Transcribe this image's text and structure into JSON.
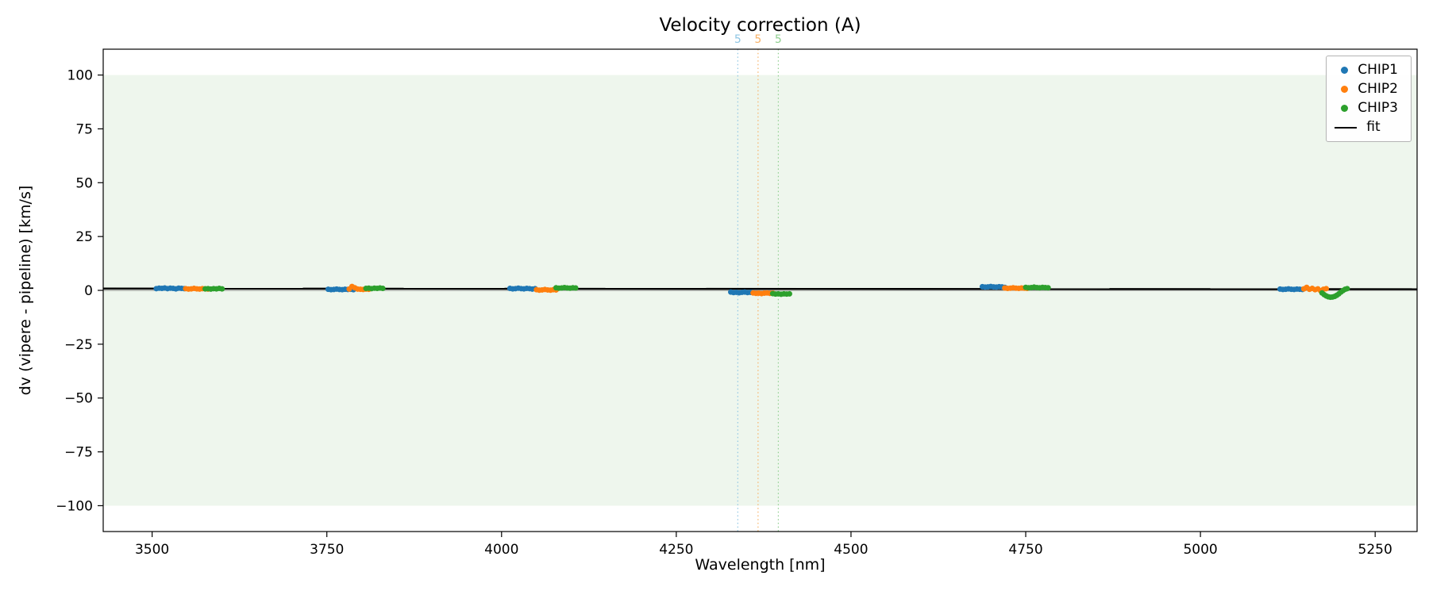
{
  "chart_data": {
    "type": "scatter",
    "title": "Velocity correction (A)",
    "xlabel": "Wavelength [nm]",
    "ylabel": "dv (vipere - pipeline) [km/s]",
    "xlim": [
      3430,
      5310
    ],
    "ylim": [
      -112,
      112
    ],
    "xticks": [
      3500,
      3750,
      4000,
      4250,
      4500,
      4750,
      5000,
      5250
    ],
    "yticks": [
      100,
      75,
      50,
      25,
      0,
      -25,
      -50,
      -75,
      -100
    ],
    "grid": false,
    "legend_position": "upper right",
    "band": {
      "ymin": -100,
      "ymax": 100,
      "color": "#eef6ed"
    },
    "zero_line": {
      "y": 0,
      "color": "#808080"
    },
    "vlines": [
      {
        "x": 4338,
        "label": "5",
        "color": "#8fc6e4"
      },
      {
        "x": 4367,
        "label": "5",
        "color": "#f8b267"
      },
      {
        "x": 4396,
        "label": "5",
        "color": "#90cf90"
      }
    ],
    "fit": {
      "name": "fit",
      "color": "#000000",
      "points": [
        [
          3430,
          0.85
        ],
        [
          5310,
          0.55
        ]
      ]
    },
    "series": [
      {
        "name": "CHIP1",
        "color": "#1f77b4",
        "points": [
          [
            3506,
            0.8
          ],
          [
            3510,
            1.0
          ],
          [
            3514,
            0.9
          ],
          [
            3518,
            1.1
          ],
          [
            3522,
            0.8
          ],
          [
            3526,
            1.0
          ],
          [
            3530,
            0.9
          ],
          [
            3534,
            0.7
          ],
          [
            3538,
            1.0
          ],
          [
            3542,
            0.9
          ],
          [
            3546,
            0.8
          ],
          [
            3752,
            0.5
          ],
          [
            3756,
            0.3
          ],
          [
            3760,
            0.4
          ],
          [
            3764,
            0.6
          ],
          [
            3768,
            0.4
          ],
          [
            3772,
            0.3
          ],
          [
            3776,
            0.5
          ],
          [
            3780,
            0.4
          ],
          [
            3784,
            0.5
          ],
          [
            3788,
            0.3
          ],
          [
            4012,
            0.9
          ],
          [
            4016,
            0.7
          ],
          [
            4020,
            0.8
          ],
          [
            4024,
            1.0
          ],
          [
            4028,
            0.8
          ],
          [
            4032,
            0.7
          ],
          [
            4036,
            0.9
          ],
          [
            4040,
            0.8
          ],
          [
            4044,
            0.6
          ],
          [
            4048,
            0.8
          ],
          [
            4328,
            -0.8
          ],
          [
            4332,
            -1.0
          ],
          [
            4336,
            -0.9
          ],
          [
            4340,
            -1.1
          ],
          [
            4344,
            -0.9
          ],
          [
            4348,
            -0.8
          ],
          [
            4352,
            -1.0
          ],
          [
            4356,
            -0.9
          ],
          [
            4360,
            -1.1
          ],
          [
            4688,
            1.7
          ],
          [
            4692,
            1.5
          ],
          [
            4696,
            1.6
          ],
          [
            4700,
            1.8
          ],
          [
            4704,
            1.6
          ],
          [
            4708,
            1.5
          ],
          [
            4712,
            1.7
          ],
          [
            4716,
            1.6
          ],
          [
            4720,
            1.4
          ],
          [
            5114,
            0.6
          ],
          [
            5118,
            0.4
          ],
          [
            5122,
            0.5
          ],
          [
            5126,
            0.7
          ],
          [
            5130,
            0.5
          ],
          [
            5134,
            0.4
          ],
          [
            5138,
            0.6
          ],
          [
            5142,
            0.5
          ],
          [
            5146,
            0.4
          ]
        ]
      },
      {
        "name": "CHIP2",
        "color": "#ff7f0e",
        "points": [
          [
            3548,
            0.8
          ],
          [
            3552,
            0.6
          ],
          [
            3556,
            0.7
          ],
          [
            3560,
            0.9
          ],
          [
            3564,
            0.7
          ],
          [
            3568,
            0.6
          ],
          [
            3572,
            0.8
          ],
          [
            3576,
            0.7
          ],
          [
            3580,
            0.6
          ],
          [
            3782,
            0.6
          ],
          [
            3786,
            1.8
          ],
          [
            3790,
            1.2
          ],
          [
            3794,
            0.6
          ],
          [
            3798,
            0.5
          ],
          [
            3802,
            0.4
          ],
          [
            3806,
            0.6
          ],
          [
            3810,
            0.5
          ],
          [
            4050,
            0.3
          ],
          [
            4054,
            0.1
          ],
          [
            4058,
            0.2
          ],
          [
            4062,
            0.4
          ],
          [
            4066,
            0.2
          ],
          [
            4070,
            0.1
          ],
          [
            4074,
            0.3
          ],
          [
            4078,
            0.2
          ],
          [
            4360,
            -1.2
          ],
          [
            4364,
            -1.4
          ],
          [
            4368,
            -1.3
          ],
          [
            4372,
            -1.5
          ],
          [
            4376,
            -1.3
          ],
          [
            4380,
            -1.2
          ],
          [
            4384,
            -1.4
          ],
          [
            4388,
            -1.3
          ],
          [
            4720,
            1.1
          ],
          [
            4724,
            0.9
          ],
          [
            4728,
            1.0
          ],
          [
            4732,
            1.2
          ],
          [
            4736,
            1.0
          ],
          [
            4740,
            0.9
          ],
          [
            4744,
            1.1
          ],
          [
            4748,
            1.0
          ],
          [
            4752,
            0.9
          ],
          [
            5148,
            0.7
          ],
          [
            5152,
            1.4
          ],
          [
            5156,
            0.5
          ],
          [
            5160,
            0.9
          ],
          [
            5164,
            0.3
          ],
          [
            5168,
            0.7
          ],
          [
            5172,
            -0.2
          ],
          [
            5176,
            0.5
          ],
          [
            5180,
            0.8
          ]
        ]
      },
      {
        "name": "CHIP3",
        "color": "#2ca02c",
        "points": [
          [
            3576,
            0.7
          ],
          [
            3580,
            0.8
          ],
          [
            3584,
            0.6
          ],
          [
            3588,
            0.8
          ],
          [
            3592,
            0.7
          ],
          [
            3596,
            0.9
          ],
          [
            3600,
            0.7
          ],
          [
            3806,
            0.9
          ],
          [
            3810,
            1.0
          ],
          [
            3814,
            0.8
          ],
          [
            3818,
            1.0
          ],
          [
            3822,
            0.9
          ],
          [
            3826,
            1.1
          ],
          [
            3830,
            0.9
          ],
          [
            4078,
            1.2
          ],
          [
            4082,
            1.0
          ],
          [
            4086,
            1.1
          ],
          [
            4090,
            1.3
          ],
          [
            4094,
            1.1
          ],
          [
            4098,
            1.0
          ],
          [
            4102,
            1.2
          ],
          [
            4106,
            1.1
          ],
          [
            4388,
            -1.5
          ],
          [
            4392,
            -1.7
          ],
          [
            4396,
            -1.6
          ],
          [
            4400,
            -1.8
          ],
          [
            4404,
            -1.6
          ],
          [
            4408,
            -1.7
          ],
          [
            4412,
            -1.6
          ],
          [
            4750,
            1.4
          ],
          [
            4754,
            1.2
          ],
          [
            4758,
            1.3
          ],
          [
            4762,
            1.5
          ],
          [
            4766,
            1.3
          ],
          [
            4770,
            1.2
          ],
          [
            4774,
            1.4
          ],
          [
            4778,
            1.3
          ],
          [
            4782,
            1.2
          ],
          [
            5174,
            -1.2
          ],
          [
            5177,
            -2.0
          ],
          [
            5180,
            -2.6
          ],
          [
            5183,
            -3.0
          ],
          [
            5186,
            -3.2
          ],
          [
            5189,
            -3.1
          ],
          [
            5192,
            -2.8
          ],
          [
            5195,
            -2.3
          ],
          [
            5198,
            -1.6
          ],
          [
            5201,
            -0.8
          ],
          [
            5204,
            -0.1
          ],
          [
            5207,
            0.5
          ],
          [
            5210,
            0.8
          ]
        ]
      }
    ],
    "legend_items": [
      "CHIP1",
      "CHIP2",
      "CHIP3",
      "fit"
    ]
  }
}
